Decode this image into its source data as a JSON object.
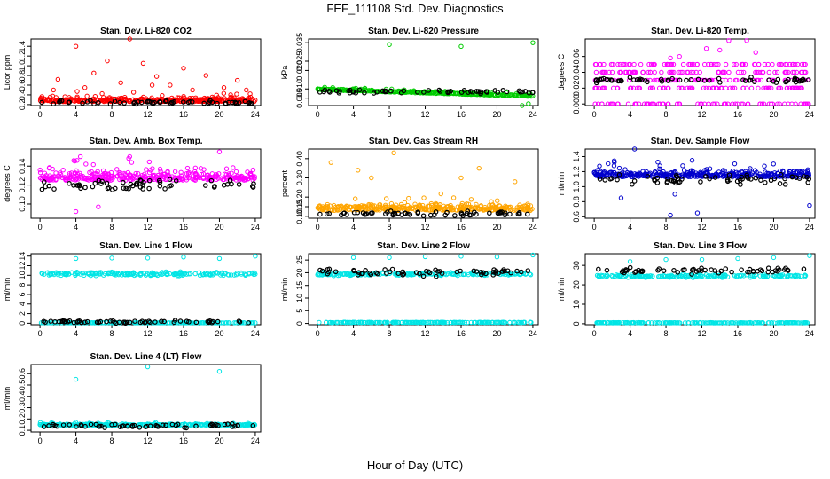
{
  "figure": {
    "title": "FEF_111108  Std. Dev. Diagnostics",
    "xlabel": "Hour of Day (UTC)"
  },
  "chart_data": [
    {
      "type": "scatter",
      "title": "Stan. Dev. Li-820 CO2",
      "ylabel": "Licor ppm",
      "ylim": [
        0.18,
        1.55
      ],
      "yticks": [
        "0.2",
        "0.4",
        "0.6",
        "0.8",
        "1.0",
        "1.2",
        "1.4"
      ],
      "xlim": [
        -1,
        24.6
      ],
      "xticks": [
        "0",
        "4",
        "8",
        "12",
        "16",
        "20",
        "24"
      ],
      "color": "#ff0000",
      "base": 0.26,
      "noise": 0.12,
      "outliers": [
        [
          4,
          1.4
        ],
        [
          10,
          1.55
        ],
        [
          7.5,
          1.1
        ],
        [
          11.5,
          1.05
        ],
        [
          16,
          0.95
        ],
        [
          13,
          0.78
        ],
        [
          2,
          0.72
        ],
        [
          18.5,
          0.8
        ],
        [
          22,
          0.7
        ],
        [
          6,
          0.85
        ],
        [
          9,
          0.65
        ],
        [
          14.5,
          0.6
        ],
        [
          20.5,
          0.55
        ],
        [
          1.5,
          0.5
        ],
        [
          5,
          0.55
        ],
        [
          12.5,
          0.6
        ],
        [
          17,
          0.5
        ],
        [
          23,
          0.5
        ]
      ],
      "black": 0.24
    },
    {
      "type": "scatter",
      "title": "Stan. Dev. Li-820 Pressure",
      "ylabel": "kPa",
      "ylim": [
        0.001,
        0.037
      ],
      "yticks": [
        "0.005",
        "0.010",
        "0.020",
        "0.025",
        "0.035"
      ],
      "ytickvals": [
        0.005,
        0.01,
        0.02,
        0.025,
        0.035
      ],
      "xlim": [
        -1,
        24.6
      ],
      "xticks": [
        "0",
        "4",
        "8",
        "12",
        "16",
        "20",
        "24"
      ],
      "color": "#00cc00",
      "base": 0.0095,
      "noise": 0.0012,
      "slope": -0.00015,
      "outliers": [
        [
          8,
          0.034
        ],
        [
          16,
          0.033
        ],
        [
          24,
          0.035
        ],
        [
          22.8,
          0.001
        ],
        [
          23.5,
          0.002
        ]
      ],
      "black": 0.0085
    },
    {
      "type": "scatter",
      "title": "Stan. Dev. Li-820 Temp.",
      "ylabel": "degrees C",
      "ylim": [
        -0.002,
        0.082
      ],
      "yticks": [
        "0.000",
        "0.02",
        "0.04",
        "0.06"
      ],
      "ytickvals": [
        0,
        0.02,
        0.04,
        0.06
      ],
      "xlim": [
        -1,
        24.6
      ],
      "xticks": [
        "0",
        "4",
        "8",
        "12",
        "16",
        "20",
        "24"
      ],
      "color": "#ff00ff",
      "levels": [
        0,
        0.02,
        0.03,
        0.04,
        0.05
      ],
      "outliers": [
        [
          15,
          0.08
        ],
        [
          17,
          0.08
        ],
        [
          12.5,
          0.07
        ],
        [
          14,
          0.068
        ],
        [
          18,
          0.065
        ],
        [
          9.5,
          0.06
        ],
        [
          8.5,
          0.058
        ]
      ],
      "black": 0.03
    },
    {
      "type": "scatter",
      "title": "Stan. Dev. Amb. Box Temp.",
      "ylabel": "degrees C",
      "ylim": [
        0.085,
        0.158
      ],
      "yticks": [
        "0.10",
        "0.12",
        "0.14"
      ],
      "ytickvals": [
        0.1,
        0.12,
        0.14
      ],
      "xlim": [
        -1,
        24.6
      ],
      "xticks": [
        "0",
        "4",
        "8",
        "12",
        "16",
        "20",
        "24"
      ],
      "color": "#ff00ff",
      "base": 0.125,
      "noise": 0.014,
      "outliers": [
        [
          4.5,
          0.15
        ],
        [
          20,
          0.155
        ],
        [
          10,
          0.15
        ],
        [
          4,
          0.092
        ],
        [
          6.5,
          0.097
        ]
      ],
      "black": 0.12
    },
    {
      "type": "scatter",
      "title": "Stan. Dev. Gas Stream RH",
      "ylabel": "percent",
      "ylim": [
        0.09,
        0.45
      ],
      "yticks": [
        "0.10",
        "0.15",
        "0.20",
        "0.30",
        "0.40"
      ],
      "ytickvals": [
        0.1,
        0.15,
        0.2,
        0.3,
        0.4
      ],
      "xlim": [
        -1,
        24.6
      ],
      "xticks": [
        "0",
        "4",
        "8",
        "12",
        "16",
        "20",
        "24"
      ],
      "color": "#ffa500",
      "base": 0.13,
      "noise": 0.05,
      "outliers": [
        [
          8.5,
          0.43
        ],
        [
          1.5,
          0.38
        ],
        [
          4.5,
          0.34
        ],
        [
          18,
          0.35
        ],
        [
          6,
          0.3
        ],
        [
          16,
          0.3
        ],
        [
          22,
          0.28
        ]
      ],
      "black": 0.115
    },
    {
      "type": "scatter",
      "title": "Stan. Dev. Sample Flow",
      "ylabel": "ml/min",
      "ylim": [
        0.58,
        1.5
      ],
      "yticks": [
        "0.6",
        "0.8",
        "1.0",
        "1.2",
        "1.4"
      ],
      "ytickvals": [
        0.6,
        0.8,
        1.0,
        1.2,
        1.4
      ],
      "xlim": [
        -1,
        24.6
      ],
      "xticks": [
        "0",
        "4",
        "8",
        "12",
        "16",
        "20",
        "24"
      ],
      "color": "#0000cc",
      "base": 1.13,
      "noise": 0.12,
      "outliers": [
        [
          4.5,
          1.5
        ],
        [
          8.5,
          0.62
        ],
        [
          11.5,
          0.65
        ],
        [
          24,
          0.75
        ],
        [
          3,
          0.85
        ],
        [
          9,
          0.9
        ]
      ],
      "black": 1.1
    },
    {
      "type": "scatter",
      "title": "Stan. Dev. Line 1 Flow",
      "ylabel": "ml/min",
      "ylim": [
        -0.3,
        14.5
      ],
      "yticks": [
        "0",
        "2",
        "4",
        "6",
        "8",
        "10",
        "12",
        "14"
      ],
      "ytickvals": [
        0,
        2,
        4,
        6,
        8,
        10,
        12,
        14
      ],
      "xlim": [
        -1,
        24.6
      ],
      "xticks": [
        "0",
        "4",
        "8",
        "12",
        "16",
        "20",
        "24"
      ],
      "color": "#00e5e5",
      "band": 10.3,
      "bandNoise": 0.4,
      "floor": 0.1,
      "outliers": [
        [
          4,
          13.5
        ],
        [
          8,
          13.6
        ],
        [
          12,
          13.6
        ],
        [
          16,
          13.8
        ],
        [
          20,
          13.5
        ],
        [
          24,
          14
        ]
      ],
      "black": 0.3
    },
    {
      "type": "scatter",
      "title": "Stan. Dev. Line 2 Flow",
      "ylabel": "ml/min",
      "ylim": [
        -0.5,
        27.5
      ],
      "yticks": [
        "0",
        "5",
        "10",
        "15",
        "20",
        "25"
      ],
      "ytickvals": [
        0,
        5,
        10,
        15,
        20,
        25
      ],
      "xlim": [
        -1,
        24.6
      ],
      "xticks": [
        "0",
        "4",
        "8",
        "12",
        "16",
        "20",
        "24"
      ],
      "color": "#00e5e5",
      "band": 19.5,
      "bandNoise": 0.6,
      "floor": 0.4,
      "outliers": [
        [
          4,
          26
        ],
        [
          8,
          26
        ],
        [
          12,
          26.3
        ],
        [
          16,
          26.5
        ],
        [
          20,
          26.2
        ],
        [
          24,
          27
        ]
      ],
      "black": 20.2
    },
    {
      "type": "scatter",
      "title": "Stan. Dev. Line 3 Flow",
      "ylabel": "ml/min",
      "ylim": [
        -0.5,
        36
      ],
      "yticks": [
        "0",
        "10",
        "20",
        "30"
      ],
      "ytickvals": [
        0,
        10,
        20,
        30
      ],
      "xlim": [
        -1,
        24.6
      ],
      "xticks": [
        "0",
        "4",
        "8",
        "12",
        "16",
        "20",
        "24"
      ],
      "color": "#00e5e5",
      "band": 24.5,
      "bandNoise": 0.8,
      "floor": 0.5,
      "outliers": [
        [
          4,
          32
        ],
        [
          8,
          33
        ],
        [
          12,
          33
        ],
        [
          16,
          33.5
        ],
        [
          20,
          34
        ],
        [
          24,
          35
        ]
      ],
      "black": 27.5
    },
    {
      "type": "scatter",
      "title": "Stan. Dev. Line 4 (LT) Flow",
      "ylabel": "ml/min",
      "ylim": [
        0.085,
        0.68
      ],
      "yticks": [
        "0.1",
        "0.2",
        "0.3",
        "0.4",
        "0.5",
        "0.6"
      ],
      "ytickvals": [
        0.1,
        0.2,
        0.3,
        0.4,
        0.5,
        0.6
      ],
      "xlim": [
        -1,
        24.6
      ],
      "xticks": [
        "0",
        "4",
        "8",
        "12",
        "16",
        "20",
        "24"
      ],
      "color": "#00e5e5",
      "base": 0.145,
      "noise": 0.015,
      "outliers": [
        [
          4,
          0.55
        ],
        [
          12,
          0.66
        ],
        [
          20,
          0.62
        ]
      ],
      "black": 0.14
    }
  ]
}
